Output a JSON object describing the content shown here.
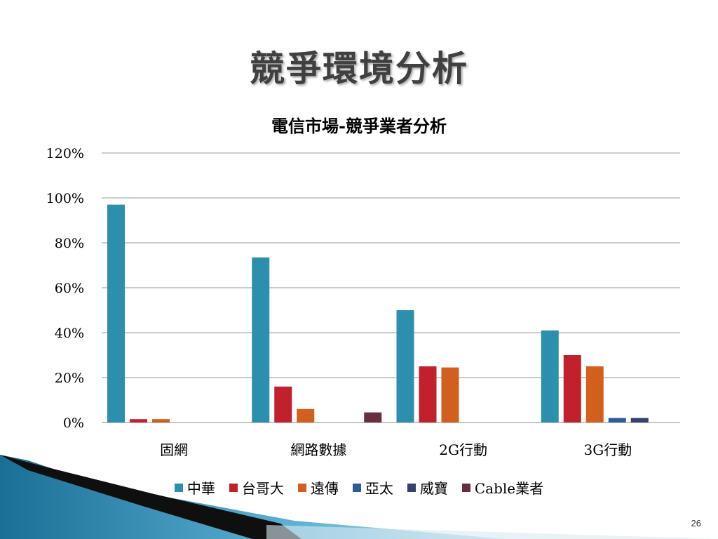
{
  "slide": {
    "title": "競爭環境分析",
    "page_number": "26"
  },
  "colors": {
    "中華": "#2B8FAD",
    "台哥大": "#C0212D",
    "遠傳": "#D35F1F",
    "亞太": "#2E5B9A",
    "威寶": "#35406E",
    "Cable業者": "#6B2E3E"
  },
  "chart_data": {
    "type": "bar",
    "title": "電信市場-競爭業者分析",
    "categories": [
      "固網",
      "網路數據",
      "2G行動",
      "3G行動"
    ],
    "ylim": [
      0,
      1.2
    ],
    "yticks": [
      "0%",
      "20%",
      "40%",
      "60%",
      "80%",
      "100%",
      "120%"
    ],
    "grid": true,
    "legend_position": "bottom",
    "series": [
      {
        "name": "中華",
        "values": [
          0.97,
          0.735,
          0.5,
          0.41
        ]
      },
      {
        "name": "台哥大",
        "values": [
          0.015,
          0.16,
          0.25,
          0.3
        ]
      },
      {
        "name": "遠傳",
        "values": [
          0.015,
          0.06,
          0.245,
          0.25
        ]
      },
      {
        "name": "亞太",
        "values": [
          0,
          0,
          0,
          0.02
        ]
      },
      {
        "name": "威寶",
        "values": [
          0,
          0,
          0,
          0.02
        ]
      },
      {
        "name": "Cable業者",
        "values": [
          0,
          0.045,
          0,
          0
        ]
      }
    ]
  }
}
